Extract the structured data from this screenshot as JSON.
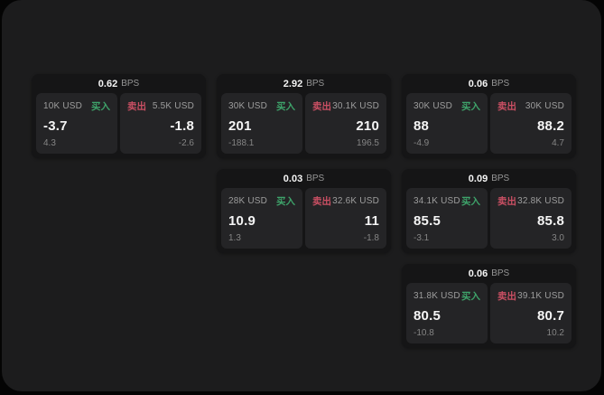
{
  "labels": {
    "bps_unit": "BPS",
    "buy": "买入",
    "sell": "卖出"
  },
  "colors": {
    "buy_green": "#3ea36a",
    "sell_red": "#c94f63",
    "panel_bg": "#1c1c1d",
    "card_bg": "#151516",
    "tile_bg": "#242426"
  },
  "cards": [
    {
      "bps": "0.62",
      "col": 0,
      "row": 0,
      "buy": {
        "size": "10K USD",
        "price": "-3.7",
        "delta": "4.3"
      },
      "sell": {
        "size": "5.5K USD",
        "price": "-1.8",
        "delta": "-2.6"
      }
    },
    {
      "bps": "2.92",
      "col": 1,
      "row": 0,
      "buy": {
        "size": "30K USD",
        "price": "201",
        "delta": "-188.1"
      },
      "sell": {
        "size": "30.1K USD",
        "price": "210",
        "delta": "196.5"
      }
    },
    {
      "bps": "0.06",
      "col": 2,
      "row": 0,
      "buy": {
        "size": "30K USD",
        "price": "88",
        "delta": "-4.9"
      },
      "sell": {
        "size": "30K USD",
        "price": "88.2",
        "delta": "4.7"
      }
    },
    {
      "bps": "0.03",
      "col": 1,
      "row": 1,
      "buy": {
        "size": "28K USD",
        "price": "10.9",
        "delta": "1.3"
      },
      "sell": {
        "size": "32.6K USD",
        "price": "11",
        "delta": "-1.8"
      }
    },
    {
      "bps": "0.09",
      "col": 2,
      "row": 1,
      "buy": {
        "size": "34.1K USD",
        "price": "85.5",
        "delta": "-3.1"
      },
      "sell": {
        "size": "32.8K USD",
        "price": "85.8",
        "delta": "3.0"
      }
    },
    {
      "bps": "0.06",
      "col": 2,
      "row": 2,
      "buy": {
        "size": "31.8K USD",
        "price": "80.5",
        "delta": "-10.8"
      },
      "sell": {
        "size": "39.1K USD",
        "price": "80.7",
        "delta": "10.2"
      }
    }
  ]
}
